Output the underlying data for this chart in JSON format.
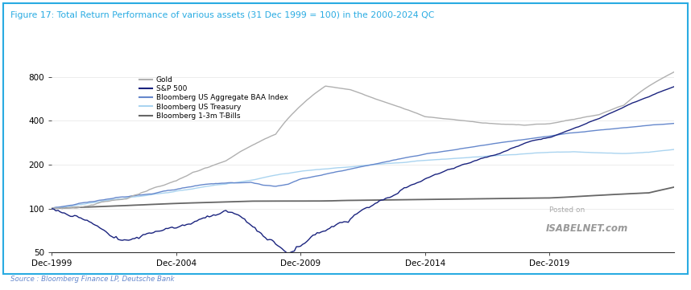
{
  "title": "Figure 17: Total Return Performance of various assets (31 Dec 1999 = 100) in the 2000-2024 QC",
  "source": "Source : Bloomberg Finance LP, Deutsche Bank",
  "watermark_line1": "Posted on",
  "watermark_line2": "ISABELNET.com",
  "ylim": [
    50,
    900
  ],
  "yticks": [
    50,
    100,
    200,
    400,
    800
  ],
  "xtick_pos": [
    0,
    5,
    10,
    15,
    20
  ],
  "xticks_labels": [
    "Dec-1999",
    "Dec-2004",
    "Dec-2009",
    "Dec-2014",
    "Dec-2019"
  ],
  "xlim": [
    0,
    25
  ],
  "legend_entries": [
    "Gold",
    "S&P 500",
    "Bloomberg US Aggregate BAA Index",
    "Bloomberg US Treasury",
    "Bloomberg 1-3m T-Bills"
  ],
  "colors": {
    "gold": "#b0b0b0",
    "sp500": "#1a237e",
    "baa": "#6688cc",
    "treasury": "#aad4f0",
    "tbills": "#666666"
  },
  "title_color": "#29abe2",
  "source_color": "#6688cc",
  "background_color": "#ffffff",
  "border_color": "#29abe2",
  "n_points": 301
}
